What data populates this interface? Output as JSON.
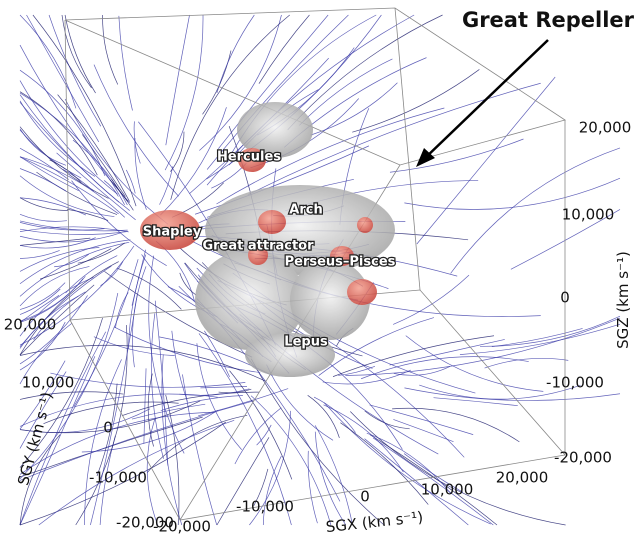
{
  "annotation": "Great Repeller",
  "regions": [
    "Hercules",
    "Arch",
    "Shapley",
    "Great attractor",
    "Perseus–Pisces",
    "Lepus"
  ],
  "axes": {
    "sgx": {
      "title": "SGX (km s⁻¹)",
      "ticks": [
        "-20,000",
        "-10,000",
        "0",
        "10,000",
        "20,000"
      ]
    },
    "sgy": {
      "title": "SGY (km s⁻¹)",
      "ticks": [
        "20,000",
        "10,000",
        "0",
        "-10,000",
        "-20,000"
      ]
    },
    "sgz": {
      "title": "SGZ (km s⁻¹)",
      "ticks": [
        "20,000",
        "10,000",
        "0",
        "-10,000",
        "-20,000"
      ]
    }
  }
}
